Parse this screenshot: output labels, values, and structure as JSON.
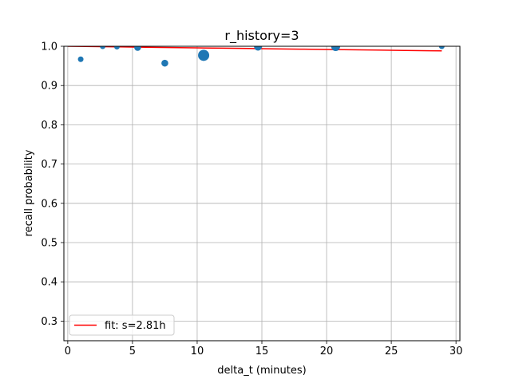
{
  "chart_data": {
    "type": "scatter",
    "title": "r_history=3",
    "xlabel": "delta_t (minutes)",
    "ylabel": "recall probability",
    "xlim": [
      -0.3,
      30.3
    ],
    "ylim": [
      0.25,
      1.0
    ],
    "xticks": [
      0,
      5,
      10,
      15,
      20,
      25,
      30
    ],
    "yticks": [
      0.3,
      0.4,
      0.5,
      0.6,
      0.7,
      0.8,
      0.9,
      1.0
    ],
    "xtick_labels": [
      "0",
      "5",
      "10",
      "15",
      "20",
      "25",
      "30"
    ],
    "ytick_labels": [
      "0.3",
      "0.4",
      "0.5",
      "0.6",
      "0.7",
      "0.8",
      "0.9",
      "1.0"
    ],
    "grid": true,
    "legend_position": "lower-left",
    "legend_label": "fit: s=2.81h",
    "colors": {
      "points": "#1f77b4",
      "fit_line": "#ff0000",
      "grid": "#b0b0b0"
    },
    "points": [
      {
        "x": 1.0,
        "y": 0.967,
        "weight": 1
      },
      {
        "x": 2.7,
        "y": 1.0,
        "weight": 1
      },
      {
        "x": 3.8,
        "y": 0.999,
        "weight": 1
      },
      {
        "x": 5.4,
        "y": 0.997,
        "weight": 1.5
      },
      {
        "x": 7.5,
        "y": 0.957,
        "weight": 1.5
      },
      {
        "x": 10.5,
        "y": 0.977,
        "weight": 4
      },
      {
        "x": 14.7,
        "y": 0.999,
        "weight": 2
      },
      {
        "x": 20.7,
        "y": 0.999,
        "weight": 2.5
      },
      {
        "x": 28.9,
        "y": 1.0,
        "weight": 1
      }
    ],
    "fit_line": {
      "name": "fit: s=2.81h",
      "x": [
        0,
        2,
        4,
        6,
        8,
        10,
        12,
        14,
        16,
        18,
        20,
        22,
        24,
        26,
        28,
        28.9
      ],
      "y": [
        1.0,
        0.99918,
        0.99836,
        0.99754,
        0.99672,
        0.99591,
        0.99509,
        0.99428,
        0.99347,
        0.99266,
        0.99185,
        0.99104,
        0.99024,
        0.98943,
        0.98863,
        0.98827
      ]
    }
  }
}
